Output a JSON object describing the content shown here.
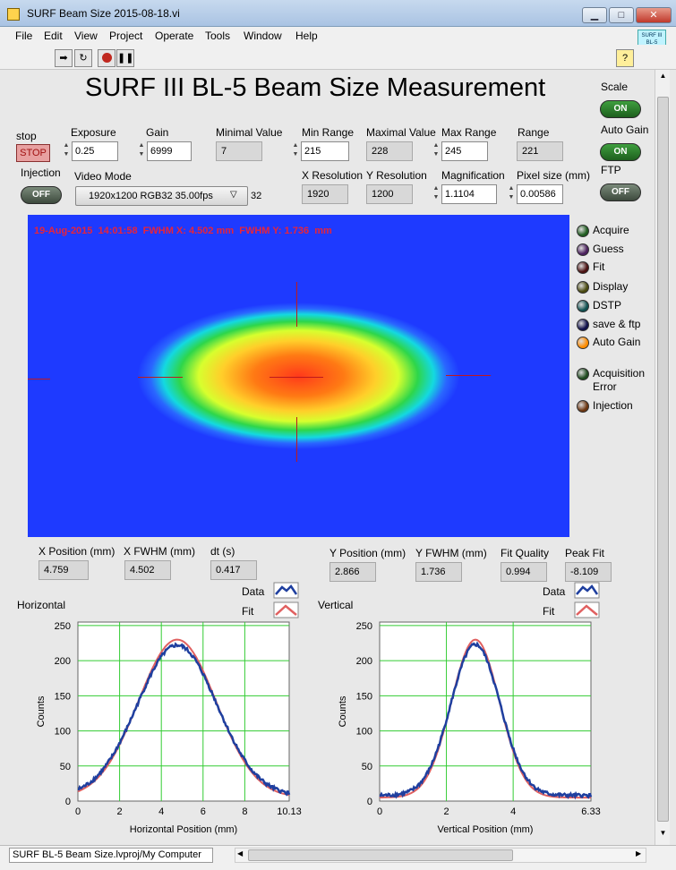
{
  "window": {
    "title": "SURF Beam Size 2015-08-18.vi"
  },
  "menu": [
    "File",
    "Edit",
    "View",
    "Project",
    "Operate",
    "Tools",
    "Window",
    "Help"
  ],
  "vi_icon_text": "SURF III BL-5 BEAM SIZE",
  "panel_title": "SURF III BL-5 Beam Size Measurement",
  "stop": {
    "label": "stop",
    "button": "STOP"
  },
  "exposure": {
    "label": "Exposure",
    "value": "0.25"
  },
  "gain": {
    "label": "Gain",
    "value": "6999"
  },
  "minimal_value": {
    "label": "Minimal Value",
    "value": "7"
  },
  "min_range": {
    "label": "Min Range",
    "value": "215"
  },
  "maximal_value": {
    "label": "Maximal Value",
    "value": "228"
  },
  "max_range": {
    "label": "Max Range",
    "value": "245"
  },
  "range": {
    "label": "Range",
    "value": "221"
  },
  "injection": {
    "label": "Injection",
    "state": "OFF"
  },
  "video_mode": {
    "label": "Video Mode",
    "value": "1920x1200 RGB32 35.00fps",
    "index": "32"
  },
  "x_resolution": {
    "label": "X Resolution",
    "value": "1920"
  },
  "y_resolution": {
    "label": "Y Resolution",
    "value": "1200"
  },
  "magnification": {
    "label": "Magnification",
    "value": "1.1104"
  },
  "pixel_size": {
    "label": "Pixel size (mm)",
    "value": "0.00586"
  },
  "scale": {
    "label": "Scale",
    "state": "ON"
  },
  "auto_gain": {
    "label": "Auto Gain",
    "state": "ON"
  },
  "ftp": {
    "label": "FTP",
    "state": "OFF"
  },
  "image_overlay": "19-Aug-2015  14:01:58  FWHM X: 4.502 mm  FWHM Y: 1.736  mm",
  "leds": [
    {
      "label": "Acquire",
      "color": "#1f5c1f"
    },
    {
      "label": "Guess",
      "color": "#4a1f5c"
    },
    {
      "label": "Fit",
      "color": "#4a1010"
    },
    {
      "label": "Display",
      "color": "#4a4a10"
    },
    {
      "label": "DSTP",
      "color": "#105050"
    },
    {
      "label": "save & ftp",
      "color": "#10104a"
    },
    {
      "label": "Auto Gain",
      "color": "#ff8c00"
    },
    {
      "label": "Acquisition",
      "color": "#1f4a1f",
      "label2": "Error"
    },
    {
      "label": "Injection",
      "color": "#6b3510"
    }
  ],
  "x_position": {
    "label": "X Position (mm)",
    "value": "4.759"
  },
  "x_fwhm": {
    "label": "X FWHM (mm)",
    "value": "4.502"
  },
  "dt": {
    "label": "dt (s)",
    "value": "0.417"
  },
  "y_position": {
    "label": "Y Position (mm)",
    "value": "2.866"
  },
  "y_fwhm": {
    "label": "Y FWHM (mm)",
    "value": "1.736"
  },
  "fit_quality": {
    "label": "Fit Quality",
    "value": "0.994"
  },
  "peak_fit": {
    "label": "Peak Fit",
    "value": "-8.109"
  },
  "legend": {
    "data": "Data",
    "fit": "Fit"
  },
  "colors": {
    "data": "#1f3f9f",
    "fit": "#e06060",
    "grid": "#33cc33"
  },
  "chart_data": [
    {
      "type": "line",
      "title": "Horizontal",
      "xlabel": "Horizontal Position (mm)",
      "ylabel": "Counts",
      "xlim": [
        0,
        10.13
      ],
      "ylim": [
        0,
        255
      ],
      "xticks": [
        "0",
        "2",
        "4",
        "6",
        "8",
        "10.13"
      ],
      "yticks": [
        "0",
        "50",
        "100",
        "150",
        "200",
        "250"
      ],
      "series": [
        {
          "name": "Data",
          "center": 4.76,
          "fwhm": 4.5,
          "peak": 215,
          "base": 7
        },
        {
          "name": "Fit",
          "center": 4.76,
          "fwhm": 4.4,
          "peak": 225,
          "base": 5
        }
      ]
    },
    {
      "type": "line",
      "title": "Vertical",
      "xlabel": "Vertical Position (mm)",
      "ylabel": "Counts",
      "xlim": [
        0,
        6.33
      ],
      "ylim": [
        0,
        255
      ],
      "xticks": [
        "0",
        "2",
        "4",
        "6.33"
      ],
      "yticks": [
        "0",
        "50",
        "100",
        "150",
        "200",
        "250"
      ],
      "series": [
        {
          "name": "Data",
          "center": 2.87,
          "fwhm": 1.74,
          "peak": 215,
          "base": 8
        },
        {
          "name": "Fit",
          "center": 2.87,
          "fwhm": 1.7,
          "peak": 225,
          "base": 5
        }
      ]
    }
  ],
  "status": "SURF BL-5 Beam Size.lvproj/My Computer"
}
